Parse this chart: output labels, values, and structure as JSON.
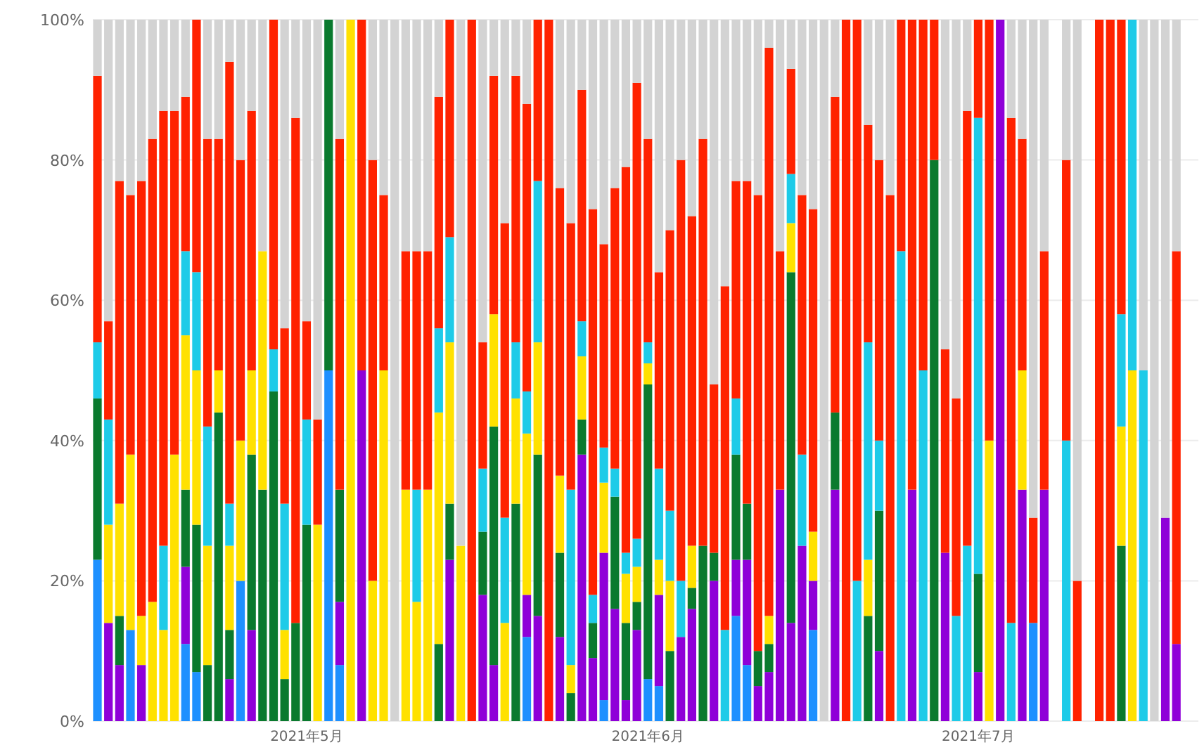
{
  "chart_data": {
    "type": "bar",
    "stacked": true,
    "x": [
      "2021-04-12",
      "2021-04-13",
      "2021-04-14",
      "2021-04-15",
      "2021-04-16",
      "2021-04-17",
      "2021-04-18",
      "2021-04-19",
      "2021-04-20",
      "2021-04-21",
      "2021-04-22",
      "2021-04-23",
      "2021-04-24",
      "2021-04-25",
      "2021-04-26",
      "2021-04-27",
      "2021-04-28",
      "2021-04-29",
      "2021-04-30",
      "2021-05-01",
      "2021-05-02",
      "2021-05-03",
      "2021-05-04",
      "2021-05-05",
      "2021-05-06",
      "2021-05-07",
      "2021-05-08",
      "2021-05-09",
      "2021-05-10",
      "2021-05-11",
      "2021-05-12",
      "2021-05-13",
      "2021-05-14",
      "2021-05-15",
      "2021-05-16",
      "2021-05-17",
      "2021-05-18",
      "2021-05-19",
      "2021-05-20",
      "2021-05-21",
      "2021-05-22",
      "2021-05-23",
      "2021-05-24",
      "2021-05-25",
      "2021-05-26",
      "2021-05-27",
      "2021-05-28",
      "2021-05-29",
      "2021-05-30",
      "2021-05-31",
      "2021-06-01",
      "2021-06-02",
      "2021-06-03",
      "2021-06-04",
      "2021-06-05",
      "2021-06-06",
      "2021-06-07",
      "2021-06-08",
      "2021-06-09",
      "2021-06-10",
      "2021-06-11",
      "2021-06-12",
      "2021-06-13",
      "2021-06-14",
      "2021-06-15",
      "2021-06-16",
      "2021-06-17",
      "2021-06-18",
      "2021-06-19",
      "2021-06-20",
      "2021-06-21",
      "2021-06-22",
      "2021-06-23",
      "2021-06-24",
      "2021-06-25",
      "2021-06-26",
      "2021-06-27",
      "2021-06-28",
      "2021-06-29",
      "2021-06-30",
      "2021-07-01",
      "2021-07-02",
      "2021-07-03",
      "2021-07-04",
      "2021-07-05",
      "2021-07-06",
      "2021-07-07",
      "2021-07-08",
      "2021-07-09",
      "2021-07-10",
      "2021-07-11",
      "2021-07-12",
      "2021-07-13",
      "2021-07-14",
      "2021-07-15",
      "2021-07-16",
      "2021-07-17",
      "2021-07-18",
      "2021-07-19"
    ],
    "series": [
      {
        "color": "#1e90ff",
        "values": [
          23,
          0,
          0,
          13,
          0,
          0,
          0,
          0,
          11,
          7,
          0,
          0,
          0,
          20,
          0,
          0,
          0,
          0,
          0,
          0,
          0,
          50,
          8,
          0,
          0,
          0,
          0,
          0,
          0,
          0,
          0,
          0,
          0,
          0,
          0,
          0,
          0,
          0,
          0,
          12,
          0,
          0,
          0,
          0,
          0,
          0,
          3,
          0,
          0,
          0,
          6,
          5,
          0,
          0,
          0,
          0,
          0,
          0,
          15,
          8,
          0,
          0,
          0,
          0,
          0,
          13,
          0,
          0,
          0,
          0,
          0,
          0,
          0,
          0,
          0,
          0,
          0,
          0,
          0,
          0,
          0,
          0,
          0,
          0,
          0,
          14,
          0,
          null,
          0,
          0,
          null,
          0,
          0,
          0,
          0,
          0,
          0,
          0,
          0
        ]
      },
      {
        "color": "#8f00d8",
        "values": [
          0,
          14,
          8,
          0,
          8,
          0,
          0,
          0,
          11,
          0,
          0,
          0,
          6,
          0,
          13,
          0,
          0,
          0,
          0,
          0,
          0,
          0,
          9,
          0,
          50,
          0,
          0,
          0,
          0,
          0,
          0,
          0,
          23,
          0,
          0,
          18,
          8,
          0,
          0,
          6,
          15,
          0,
          12,
          0,
          38,
          9,
          21,
          16,
          3,
          13,
          0,
          13,
          0,
          12,
          16,
          0,
          20,
          0,
          8,
          15,
          5,
          7,
          33,
          14,
          25,
          7,
          0,
          33,
          0,
          0,
          0,
          10,
          0,
          0,
          33,
          0,
          0,
          24,
          0,
          0,
          7,
          0,
          100,
          0,
          33,
          0,
          33,
          null,
          0,
          0,
          null,
          0,
          0,
          0,
          0,
          0,
          0,
          29,
          11
        ]
      },
      {
        "color": "#0a7a2e",
        "values": [
          23,
          0,
          7,
          0,
          0,
          0,
          0,
          0,
          11,
          21,
          8,
          44,
          7,
          0,
          25,
          33,
          47,
          6,
          14,
          28,
          0,
          50,
          16,
          0,
          0,
          0,
          0,
          0,
          0,
          0,
          0,
          11,
          8,
          0,
          0,
          9,
          34,
          0,
          31,
          0,
          23,
          0,
          12,
          4,
          5,
          5,
          0,
          16,
          11,
          4,
          42,
          0,
          10,
          0,
          3,
          25,
          4,
          0,
          15,
          8,
          5,
          4,
          0,
          50,
          0,
          0,
          0,
          11,
          0,
          0,
          15,
          20,
          0,
          0,
          0,
          0,
          80,
          0,
          0,
          0,
          14,
          0,
          0,
          0,
          0,
          0,
          0,
          null,
          0,
          0,
          null,
          0,
          0,
          25,
          0,
          0,
          0,
          0,
          0
        ]
      },
      {
        "color": "#ffe100",
        "values": [
          0,
          14,
          16,
          25,
          7,
          17,
          13,
          38,
          22,
          22,
          17,
          6,
          12,
          20,
          12,
          34,
          0,
          7,
          0,
          0,
          28,
          0,
          0,
          100,
          0,
          20,
          50,
          0,
          33,
          17,
          33,
          33,
          23,
          25,
          0,
          0,
          16,
          14,
          15,
          23,
          16,
          0,
          11,
          4,
          9,
          0,
          10,
          0,
          7,
          5,
          3,
          5,
          10,
          0,
          6,
          0,
          0,
          0,
          0,
          0,
          0,
          4,
          0,
          7,
          0,
          7,
          0,
          0,
          0,
          0,
          8,
          0,
          0,
          0,
          0,
          0,
          0,
          0,
          0,
          0,
          0,
          40,
          0,
          0,
          17,
          0,
          0,
          null,
          0,
          0,
          null,
          0,
          0,
          17,
          50,
          0,
          0,
          0,
          0
        ]
      },
      {
        "color": "#1ecbe8",
        "values": [
          8,
          15,
          0,
          0,
          0,
          0,
          12,
          0,
          12,
          14,
          17,
          0,
          6,
          0,
          0,
          0,
          6,
          18,
          0,
          15,
          0,
          0,
          0,
          0,
          0,
          0,
          0,
          0,
          0,
          16,
          0,
          12,
          15,
          0,
          0,
          9,
          0,
          15,
          8,
          6,
          23,
          0,
          0,
          25,
          5,
          4,
          5,
          4,
          3,
          4,
          3,
          13,
          10,
          8,
          0,
          0,
          0,
          13,
          8,
          0,
          0,
          0,
          0,
          7,
          13,
          0,
          0,
          0,
          0,
          20,
          31,
          10,
          0,
          67,
          0,
          50,
          0,
          0,
          15,
          25,
          65,
          0,
          0,
          14,
          0,
          0,
          0,
          null,
          40,
          0,
          null,
          0,
          0,
          16,
          50,
          50,
          0,
          0,
          0
        ]
      },
      {
        "color": "#ff2200",
        "values": [
          38,
          14,
          46,
          37,
          62,
          66,
          62,
          49,
          22,
          36,
          41,
          33,
          63,
          40,
          37,
          0,
          47,
          25,
          72,
          14,
          15,
          0,
          50,
          0,
          50,
          60,
          25,
          0,
          34,
          34,
          34,
          33,
          31,
          0,
          100,
          18,
          34,
          42,
          38,
          41,
          23,
          100,
          41,
          38,
          33,
          55,
          29,
          40,
          55,
          65,
          29,
          28,
          40,
          60,
          47,
          58,
          24,
          49,
          31,
          46,
          65,
          81,
          34,
          15,
          37,
          46,
          0,
          45,
          100,
          80,
          31,
          40,
          75,
          33,
          67,
          50,
          20,
          29,
          31,
          62,
          14,
          60,
          0,
          72,
          33,
          15,
          34,
          null,
          40,
          20,
          null,
          100,
          100,
          42,
          0,
          0,
          0,
          0,
          56
        ]
      },
      {
        "color": "#d3d3d3",
        "values": [
          8,
          43,
          23,
          25,
          23,
          17,
          13,
          13,
          11,
          0,
          17,
          17,
          6,
          20,
          13,
          33,
          0,
          44,
          14,
          43,
          57,
          0,
          17,
          0,
          0,
          20,
          25,
          100,
          33,
          33,
          33,
          11,
          0,
          75,
          0,
          46,
          8,
          29,
          8,
          12,
          0,
          0,
          24,
          29,
          10,
          27,
          32,
          24,
          21,
          9,
          17,
          36,
          30,
          20,
          28,
          17,
          52,
          38,
          23,
          23,
          25,
          4,
          33,
          7,
          25,
          27,
          100,
          11,
          0,
          0,
          15,
          20,
          25,
          0,
          0,
          0,
          0,
          47,
          54,
          13,
          0,
          0,
          0,
          14,
          17,
          71,
          33,
          null,
          20,
          80,
          null,
          0,
          0,
          0,
          0,
          50,
          100,
          71,
          33
        ]
      }
    ],
    "xlim": [
      "2021-04-11T14:00",
      "2021-07-21T00:00"
    ],
    "xticks": [
      {
        "value": "2021-05-01",
        "label": "2021年5月"
      },
      {
        "value": "2021-06-01",
        "label": "2021年6月"
      },
      {
        "value": "2021-07-01",
        "label": "2021年7月"
      }
    ],
    "ylim": [
      0,
      100
    ],
    "yticks": [
      {
        "value": 0,
        "label": "0%"
      },
      {
        "value": 20,
        "label": "20%"
      },
      {
        "value": 40,
        "label": "40%"
      },
      {
        "value": 60,
        "label": "60%"
      },
      {
        "value": 80,
        "label": "80%"
      },
      {
        "value": 100,
        "label": "100%"
      }
    ],
    "grid": "y"
  }
}
